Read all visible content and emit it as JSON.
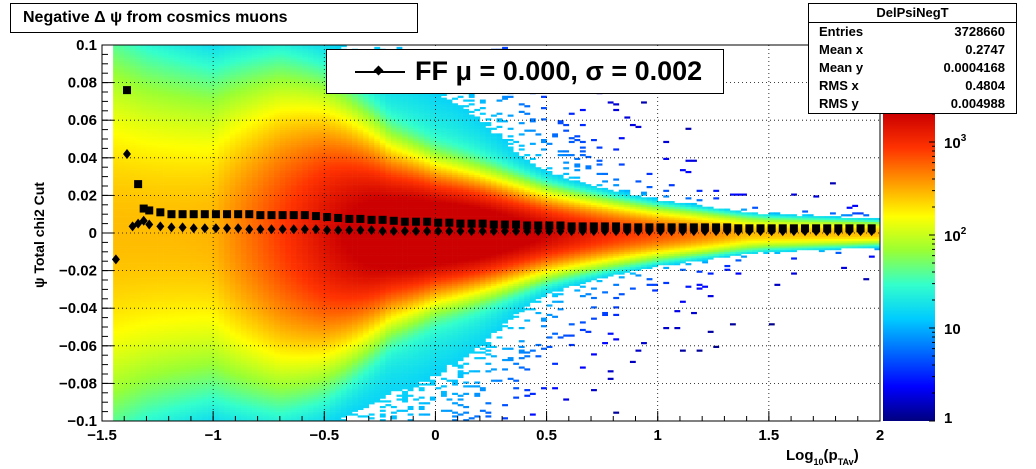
{
  "title": "Negative Δ ψ from cosmics muons",
  "stats": {
    "name": "DelPsiNegT",
    "rows": [
      {
        "label": "Entries",
        "value": "3728660"
      },
      {
        "label": "Mean x",
        "value": "0.2747"
      },
      {
        "label": "Mean y",
        "value": "0.0004168"
      },
      {
        "label": "RMS x",
        "value": "0.4804"
      },
      {
        "label": "RMS y",
        "value": "0.004988"
      }
    ]
  },
  "legend": {
    "text": "FF μ =  0.000, σ =   0.002"
  },
  "chart_data": {
    "type": "heatmap",
    "xlabel": "Log10(pTAv)",
    "ylabel": "ψ  Total chi2 Cut",
    "xlim": [
      -1.5,
      2.0
    ],
    "ylim": [
      -0.1,
      0.1
    ],
    "x_ticks": [
      "−1.5",
      "−1",
      "−0.5",
      "0",
      "0.5",
      "1",
      "1.5",
      "2"
    ],
    "y_ticks": [
      "−0.1",
      "−0.08",
      "−0.06",
      "−0.04",
      "−0.02",
      "0",
      "0.02",
      "0.04",
      "0.06",
      "0.08",
      "0.1"
    ],
    "z_log_scale": true,
    "z_range": [
      1,
      2000
    ],
    "z_ticks": [
      "1",
      "10",
      "10²",
      "10³"
    ],
    "grid": true,
    "palette": [
      "#00007f",
      "#0000ff",
      "#0066ff",
      "#00ccff",
      "#33ffcc",
      "#99ff33",
      "#ffff00",
      "#ff9900",
      "#ff3300",
      "#cc0000"
    ],
    "width_profile": {
      "x": [
        -1.45,
        -1.3,
        -1.0,
        -0.7,
        -0.5,
        -0.2,
        0.0,
        0.5,
        1.0,
        1.5,
        2.0
      ],
      "sigma": [
        0.05,
        0.045,
        0.04,
        0.036,
        0.03,
        0.018,
        0.014,
        0.009,
        0.006,
        0.004,
        0.003
      ]
    },
    "series": [
      {
        "name": "FF",
        "marker": "diamond",
        "color": "#000000",
        "x": [
          -1.4375,
          -1.3875,
          -1.3625,
          -1.3375,
          -1.3125,
          -1.2875,
          -1.2375,
          -1.1875,
          -1.1375,
          -1.0875,
          -1.0375,
          -0.9875,
          -0.9375,
          -0.8875,
          -0.8375,
          -0.7875,
          -0.7375,
          -0.6875,
          -0.6375,
          -0.5875,
          -0.5375,
          -0.4875,
          -0.4375,
          -0.3875,
          -0.3375,
          -0.2875,
          -0.2375,
          -0.1875,
          -0.1375,
          -0.0875,
          -0.0375,
          0.0125,
          0.0625,
          0.1125,
          0.1625,
          0.2125,
          0.2625,
          0.3125,
          0.3625,
          0.4125,
          0.4625,
          0.5125,
          0.5625,
          0.6125,
          0.6625,
          0.7125,
          0.7625,
          0.8125,
          0.8625,
          0.9125,
          0.9625,
          1.0125,
          1.0625,
          1.1125,
          1.1625,
          1.2125,
          1.2625,
          1.3125,
          1.3625,
          1.4125,
          1.4625,
          1.5125,
          1.5625,
          1.6125,
          1.6625,
          1.7125,
          1.7625,
          1.8125,
          1.8625,
          1.9125,
          1.9625
        ],
        "y": [
          -0.014,
          0.042,
          0.0035,
          0.005,
          0.0065,
          0.0045,
          0.0035,
          0.003,
          0.003,
          0.0025,
          0.0025,
          0.0025,
          0.0025,
          0.0025,
          0.002,
          0.002,
          0.002,
          0.002,
          0.002,
          0.002,
          0.002,
          0.0015,
          0.0015,
          0.0015,
          0.0015,
          0.0015,
          0.001,
          0.001,
          0.001,
          0.001,
          0.001,
          0.001,
          0.001,
          0.001,
          0.001,
          0.001,
          0.001,
          0.001,
          0.001,
          0.001,
          0.001,
          0.001,
          0.001,
          0.001,
          0.001,
          0.001,
          0.001,
          0.001,
          0.001,
          0.001,
          0.001,
          0.001,
          0.001,
          0.001,
          0.001,
          0.001,
          0.001,
          0.001,
          0.001,
          0.001,
          0.001,
          0.001,
          0.001,
          0.001,
          0.001,
          0.001,
          0.001,
          0.001,
          0.001,
          0.001,
          0.001
        ]
      },
      {
        "name": "sigma",
        "marker": "square",
        "color": "#000000",
        "x": [
          -1.3875,
          -1.3375,
          -1.3125,
          -1.2875,
          -1.2375,
          -1.1875,
          -1.1375,
          -1.0875,
          -1.0375,
          -0.9875,
          -0.9375,
          -0.8875,
          -0.8375,
          -0.7875,
          -0.7375,
          -0.6875,
          -0.6375,
          -0.5875,
          -0.5375,
          -0.4875,
          -0.4375,
          -0.3875,
          -0.3375,
          -0.2875,
          -0.2375,
          -0.1875,
          -0.1375,
          -0.0875,
          -0.0375,
          0.0125,
          0.0625,
          0.1125,
          0.1625,
          0.2125,
          0.2625,
          0.3125,
          0.3625,
          0.4125,
          0.4625,
          0.5125,
          0.5625,
          0.6125,
          0.6625,
          0.7125,
          0.7625,
          0.8125,
          0.8625,
          0.9125,
          0.9625,
          1.0125,
          1.0625,
          1.1125,
          1.1625,
          1.2125,
          1.2625,
          1.3125,
          1.3625,
          1.4125,
          1.4625,
          1.5125,
          1.5625,
          1.6125,
          1.6625,
          1.7125,
          1.7625,
          1.8125,
          1.8625,
          1.9125,
          1.9625
        ],
        "y": [
          0.076,
          0.026,
          0.013,
          0.012,
          0.011,
          0.01,
          0.01,
          0.01,
          0.01,
          0.01,
          0.01,
          0.01,
          0.01,
          0.0095,
          0.0095,
          0.0095,
          0.0095,
          0.0095,
          0.009,
          0.0085,
          0.008,
          0.0075,
          0.0075,
          0.007,
          0.007,
          0.0065,
          0.006,
          0.006,
          0.006,
          0.0055,
          0.0055,
          0.005,
          0.005,
          0.005,
          0.0045,
          0.0045,
          0.0045,
          0.004,
          0.004,
          0.004,
          0.004,
          0.0035,
          0.0035,
          0.0035,
          0.0035,
          0.0035,
          0.003,
          0.003,
          0.003,
          0.003,
          0.003,
          0.003,
          0.003,
          0.003,
          0.003,
          0.003,
          0.0025,
          0.0025,
          0.0025,
          0.0025,
          0.0025,
          0.0025,
          0.0025,
          0.0025,
          0.0025,
          0.0025,
          0.0025,
          0.0025,
          0.0025
        ]
      }
    ]
  }
}
